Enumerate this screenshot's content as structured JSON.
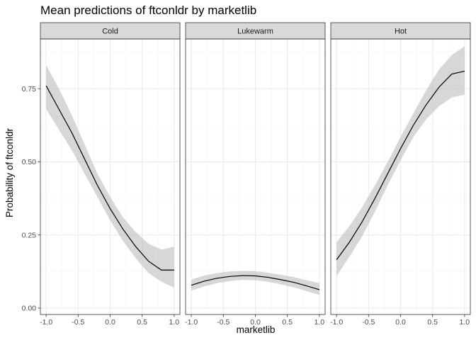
{
  "chart_data": {
    "type": "line",
    "title": "Mean predictions of ftconldr by marketlib",
    "xlabel": "marketlib",
    "ylabel": "Probability of ftconldr",
    "xlim": [
      -1.0,
      1.0
    ],
    "ylim": [
      0.0,
      0.9
    ],
    "x_ticks": [
      "-1.0",
      "-0.5",
      "0.0",
      "0.5",
      "1.0"
    ],
    "y_ticks": [
      "0.00",
      "0.25",
      "0.50",
      "0.75"
    ],
    "grid": true,
    "legend": "none",
    "colors": {
      "line": "#000000",
      "ribbon": "#bdbdbd",
      "strip": "#d9d9d9"
    },
    "x": [
      -1.0,
      -0.8,
      -0.6,
      -0.4,
      -0.2,
      0.0,
      0.2,
      0.4,
      0.6,
      0.8,
      1.0
    ],
    "panels": [
      {
        "name": "Cold",
        "mean": [
          0.76,
          0.68,
          0.6,
          0.51,
          0.42,
          0.34,
          0.27,
          0.21,
          0.16,
          0.13,
          0.13
        ],
        "lower": [
          0.68,
          0.61,
          0.54,
          0.46,
          0.38,
          0.3,
          0.23,
          0.17,
          0.12,
          0.09,
          0.07
        ],
        "upper": [
          0.83,
          0.75,
          0.66,
          0.56,
          0.46,
          0.38,
          0.31,
          0.26,
          0.22,
          0.2,
          0.21
        ]
      },
      {
        "name": "Lukewarm",
        "mean": [
          0.078,
          0.092,
          0.102,
          0.108,
          0.111,
          0.11,
          0.105,
          0.097,
          0.088,
          0.076,
          0.063
        ],
        "lower": [
          0.06,
          0.074,
          0.085,
          0.092,
          0.096,
          0.095,
          0.09,
          0.081,
          0.071,
          0.058,
          0.045
        ],
        "upper": [
          0.098,
          0.111,
          0.12,
          0.125,
          0.127,
          0.126,
          0.121,
          0.114,
          0.106,
          0.095,
          0.085
        ]
      },
      {
        "name": "Hot",
        "mean": [
          0.165,
          0.225,
          0.295,
          0.375,
          0.46,
          0.545,
          0.625,
          0.695,
          0.755,
          0.8,
          0.81
        ],
        "lower": [
          0.11,
          0.175,
          0.245,
          0.33,
          0.42,
          0.505,
          0.585,
          0.645,
          0.69,
          0.72,
          0.73
        ],
        "upper": [
          0.225,
          0.28,
          0.345,
          0.42,
          0.5,
          0.585,
          0.665,
          0.745,
          0.815,
          0.865,
          0.895
        ]
      }
    ]
  }
}
